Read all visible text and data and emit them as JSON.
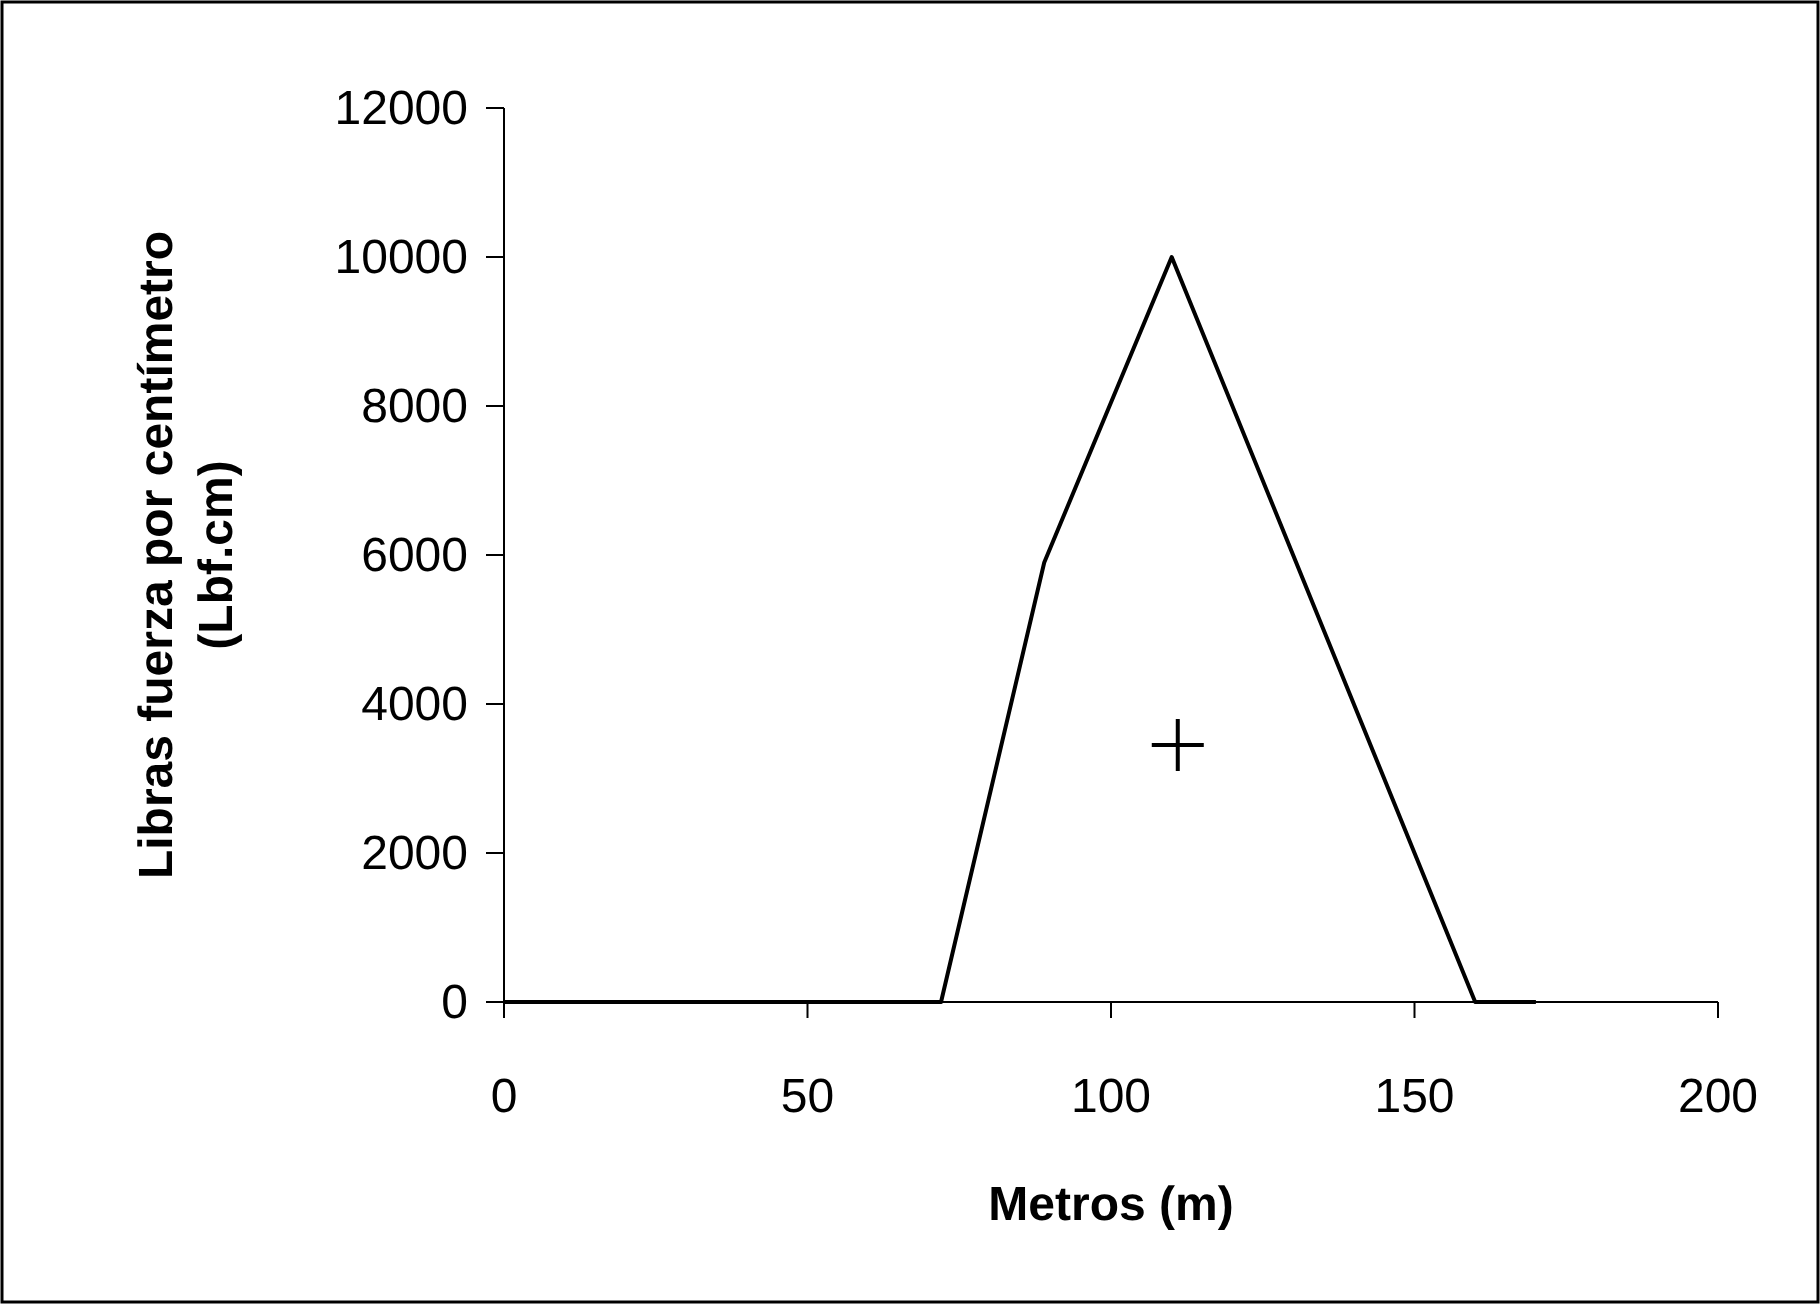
{
  "chart_data": {
    "type": "line",
    "xlabel": "Metros (m)",
    "ylabel": "Libras fuerza por centímetro\n(Lbf.cm)",
    "xlim": [
      0,
      200
    ],
    "xticks": [
      0,
      50,
      100,
      150,
      200
    ],
    "ylim": [
      0,
      12000
    ],
    "yticks": [
      0,
      2000,
      4000,
      6000,
      8000,
      10000,
      12000
    ],
    "grid": false,
    "series": [
      {
        "color": "#000000",
        "x": [
          0,
          72,
          89,
          110,
          160,
          170
        ],
        "values": [
          0,
          0,
          5900,
          10000,
          0,
          0
        ],
        "marker": "none",
        "line_style": "solid"
      },
      {
        "type": "scatter",
        "color": "#000000",
        "x": [
          111
        ],
        "values": [
          3450
        ],
        "marker": "cross"
      }
    ]
  }
}
